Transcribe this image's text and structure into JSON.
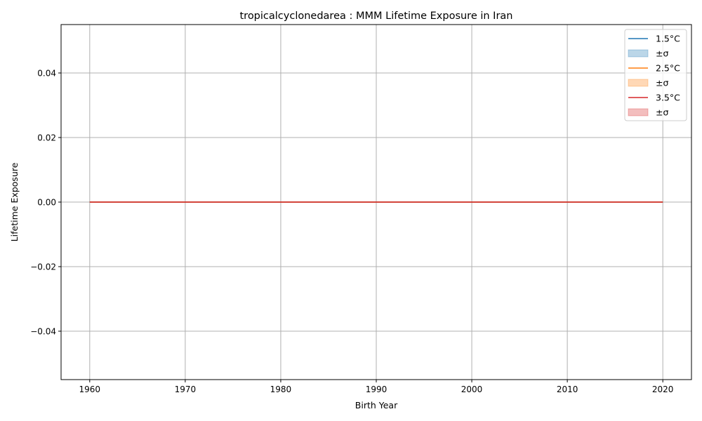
{
  "chart_data": {
    "type": "line",
    "title": "tropicalcyclonedarea : MMM Lifetime Exposure in Iran",
    "xlabel": "Birth Year",
    "ylabel": "Lifetime Exposure",
    "xlim": [
      1957,
      2023
    ],
    "ylim": [
      -0.055,
      0.055
    ],
    "xticks": [
      1960,
      1970,
      1980,
      1990,
      2000,
      2010,
      2020
    ],
    "xtick_labels": [
      "1960",
      "1970",
      "1980",
      "1990",
      "2000",
      "2010",
      "2020"
    ],
    "yticks": [
      -0.04,
      -0.02,
      0.0,
      0.02,
      0.04
    ],
    "ytick_labels": [
      "−0.04",
      "−0.02",
      "0.00",
      "0.02",
      "0.04"
    ],
    "grid": true,
    "legend_position": "top-right",
    "x": [
      1960,
      2020
    ],
    "series": [
      {
        "name": "1.5°C",
        "band_label": "±σ",
        "color": "#1f77b4",
        "values": [
          0,
          0
        ],
        "lower": [
          0,
          0
        ],
        "upper": [
          0,
          0
        ]
      },
      {
        "name": "2.5°C",
        "band_label": "±σ",
        "color": "#ff7f0e",
        "values": [
          0,
          0
        ],
        "lower": [
          0,
          0
        ],
        "upper": [
          0,
          0
        ]
      },
      {
        "name": "3.5°C",
        "band_label": "±σ",
        "color": "#d62728",
        "values": [
          0,
          0
        ],
        "lower": [
          0,
          0
        ],
        "upper": [
          0,
          0
        ]
      }
    ]
  }
}
